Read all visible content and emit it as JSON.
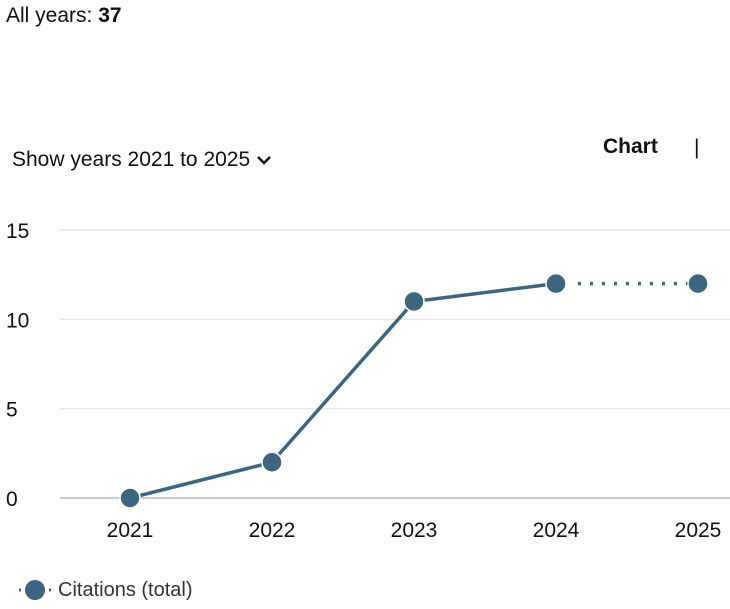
{
  "summary": {
    "label": "All years:",
    "value": "37"
  },
  "range_selector": {
    "label": "Show years 2021 to 2025",
    "icon": "chevron-down-icon"
  },
  "view_toggle": {
    "active": "Chart",
    "separator": "|"
  },
  "chart_data": {
    "type": "line",
    "categories": [
      "2021",
      "2022",
      "2023",
      "2024",
      "2025"
    ],
    "series": [
      {
        "name": "Citations (total)",
        "values": [
          0,
          2,
          11,
          12,
          12
        ],
        "color": "#3d6580",
        "projected_from": "2024"
      }
    ],
    "yticks": [
      "0",
      "5",
      "10",
      "15"
    ],
    "ylim": [
      0,
      15
    ],
    "grid": true,
    "legend": "bottom-left"
  }
}
